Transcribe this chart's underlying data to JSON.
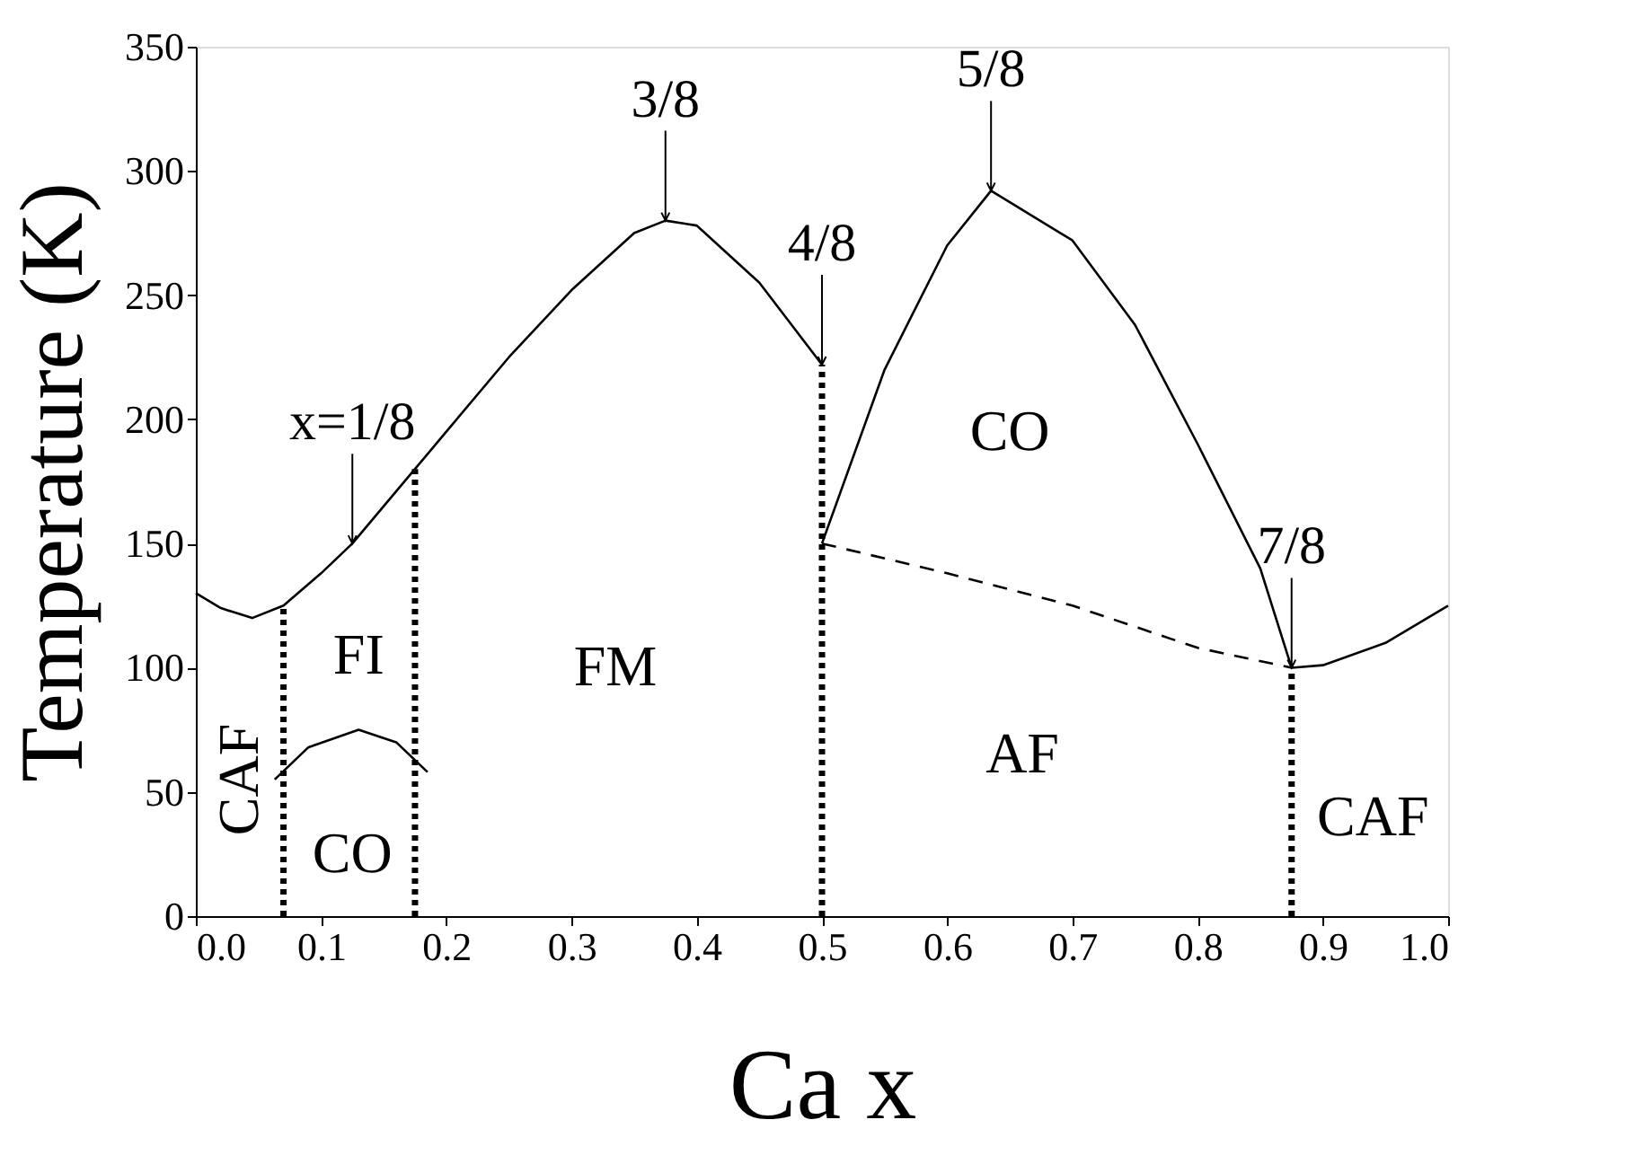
{
  "chart_data": {
    "type": "line",
    "xlabel": "Ca x",
    "ylabel": "Temperature (K)",
    "xlim": [
      0,
      1
    ],
    "ylim": [
      0,
      350
    ],
    "xticks": [
      {
        "value": 0,
        "label": "0.0"
      },
      0.1,
      0.2,
      0.3,
      0.4,
      0.5,
      0.6,
      0.7,
      0.8,
      0.9,
      {
        "value": 1,
        "label": "1.0"
      }
    ],
    "yticks": [
      0,
      50,
      100,
      150,
      200,
      250,
      300,
      350
    ],
    "grid": false,
    "marker": "none",
    "series": [
      {
        "color": "#000000",
        "line_style": "solid",
        "x": [
          0,
          0.02,
          0.045,
          0.07,
          0.1,
          0.125,
          0.15,
          0.175,
          0.2,
          0.25,
          0.3,
          0.35,
          0.375,
          0.4,
          0.45,
          0.5
        ],
        "values": [
          130,
          124,
          120,
          125,
          138,
          150,
          165,
          180,
          195,
          225,
          252,
          275,
          280,
          278,
          255,
          222
        ]
      },
      {
        "color": "#000000",
        "line_style": "solid",
        "x": [
          0.5,
          0.55,
          0.6,
          0.635,
          0.7,
          0.75,
          0.8,
          0.85,
          0.875,
          0.9,
          0.95,
          1.0
        ],
        "values": [
          150,
          220,
          270,
          292,
          272,
          238,
          190,
          140,
          100,
          101,
          110,
          125
        ]
      },
      {
        "color": "#000000",
        "line_style": "dashed",
        "x": [
          0.5,
          0.6,
          0.7,
          0.8,
          0.875
        ],
        "values": [
          150,
          138,
          125,
          108,
          100
        ]
      },
      {
        "color": "#000000",
        "line_style": "solid",
        "x": [
          0.063,
          0.09,
          0.13,
          0.16,
          0.185
        ],
        "values": [
          55,
          68,
          75,
          70,
          58
        ]
      },
      {
        "color": "#000000",
        "line_style": "dotted",
        "x": [
          0.07,
          0.07
        ],
        "values": [
          0,
          125
        ]
      },
      {
        "color": "#000000",
        "line_style": "dotted",
        "x": [
          0.175,
          0.175
        ],
        "values": [
          0,
          180
        ]
      },
      {
        "color": "#000000",
        "line_style": "dotted",
        "x": [
          0.5,
          0.5
        ],
        "values": [
          0,
          222
        ]
      },
      {
        "color": "#000000",
        "line_style": "dotted",
        "x": [
          0.875,
          0.875
        ],
        "values": [
          0,
          100
        ]
      }
    ],
    "annotations": [
      {
        "text": "x=1/8",
        "x": 0.125,
        "y": 150
      },
      {
        "text": "3/8",
        "x": 0.375,
        "y": 280
      },
      {
        "text": "4/8",
        "x": 0.5,
        "y": 222
      },
      {
        "text": "5/8",
        "x": 0.635,
        "y": 292
      },
      {
        "text": "7/8",
        "x": 0.875,
        "y": 100
      },
      "CAF",
      "FI",
      "CO",
      "FM",
      "CO",
      "AF",
      "CAF"
    ]
  }
}
